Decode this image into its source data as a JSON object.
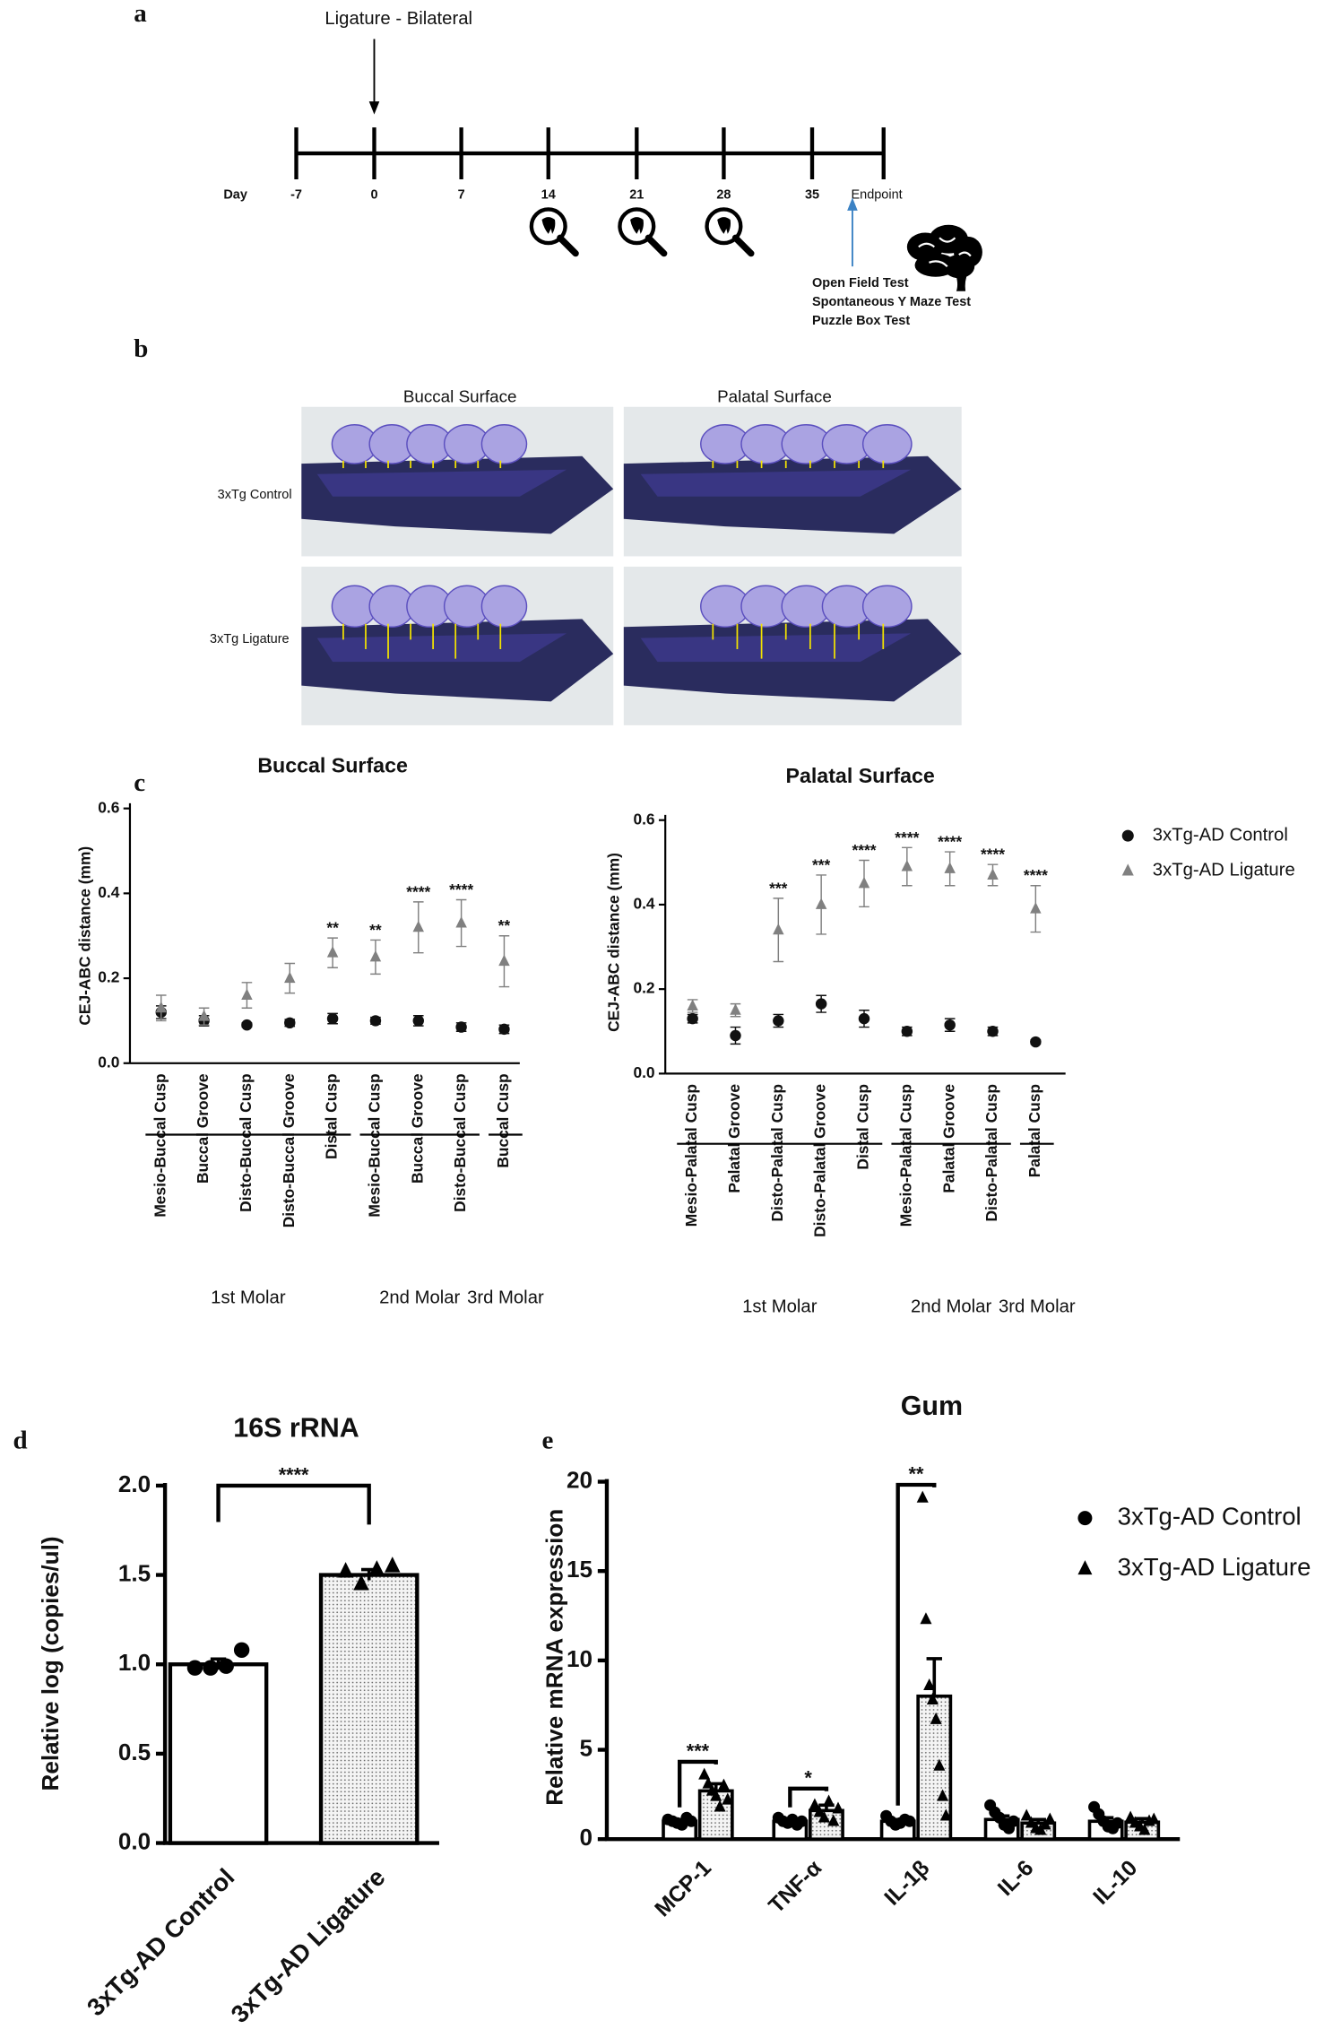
{
  "panel_labels": [
    "a",
    "b",
    "c",
    "d",
    "e"
  ],
  "timeline": {
    "title": "Ligature - Bilateral",
    "day_label": "Day",
    "days": [
      -7,
      0,
      7,
      14,
      21,
      28,
      35
    ],
    "endpoint": "Endpoint",
    "tests": [
      "Open Field Test",
      "Spontaneous Y Maze Test",
      "Puzzle Box Test"
    ]
  },
  "photos": {
    "columns": [
      "Buccal Surface",
      "Palatal Surface"
    ],
    "rows": [
      "3xTg Control",
      "3xTg Ligature"
    ]
  },
  "chart_data": [
    {
      "type": "dot",
      "title": "Buccal Surface",
      "ylabel": "CEJ-ABC distance (mm)",
      "groups": [
        {
          "label": "1st Molar",
          "categories": [
            "Mesio-Buccal Cusp",
            "Buccal Groove",
            "Disto-Buccal Cusp",
            "Disto-Buccal Groove",
            "Distal Cusp"
          ]
        },
        {
          "label": "2nd Molar",
          "categories": [
            "Mesio-Buccal Cusp",
            "Buccal Groove",
            "Disto-Buccal Cusp"
          ]
        },
        {
          "label": "3rd Molar",
          "categories": [
            "Buccal Cusp"
          ]
        }
      ],
      "series": [
        {
          "name": "3xTg-AD Control",
          "color": "#111111",
          "marker": "circle",
          "values": [
            0.12,
            0.1,
            0.09,
            0.095,
            0.105,
            0.1,
            0.1,
            0.085,
            0.08
          ],
          "errors": [
            0.015,
            0.012,
            0.005,
            0.008,
            0.012,
            0.008,
            0.012,
            0.01,
            0.01
          ]
        },
        {
          "name": "3xTg-AD Ligature",
          "color": "#808080",
          "marker": "triangle",
          "values": [
            0.13,
            0.11,
            0.16,
            0.2,
            0.26,
            0.25,
            0.32,
            0.33,
            0.24
          ],
          "errors": [
            0.03,
            0.02,
            0.03,
            0.035,
            0.035,
            0.04,
            0.06,
            0.055,
            0.06
          ]
        }
      ],
      "significance": [
        null,
        null,
        null,
        null,
        "**",
        "**",
        "****",
        "****",
        "**"
      ],
      "ylim": [
        0,
        0.6
      ],
      "yticks": [
        {
          "value": 0,
          "label": "0.0"
        },
        0.2,
        0.4,
        0.6
      ]
    },
    {
      "type": "dot",
      "title": "Palatal Surface",
      "ylabel": "CEJ-ABC distance (mm)",
      "groups": [
        {
          "label": "1st Molar",
          "categories": [
            "Mesio-Palatal Cusp",
            "Palatal Groove",
            "Disto-Palatal Cusp",
            "Disto-Palatal Groove",
            "Distal Cusp"
          ]
        },
        {
          "label": "2nd Molar",
          "categories": [
            "Mesio-Palatal Cusp",
            "Palatal Groove",
            "Disto-Palatal Cusp"
          ]
        },
        {
          "label": "3rd Molar",
          "categories": [
            "Palatal Cusp"
          ]
        }
      ],
      "series": [
        {
          "name": "3xTg-AD Control",
          "color": "#111111",
          "marker": "circle",
          "values": [
            0.13,
            0.09,
            0.125,
            0.165,
            0.13,
            0.1,
            0.115,
            0.1,
            0.075
          ],
          "errors": [
            0.01,
            0.02,
            0.015,
            0.02,
            0.02,
            0.01,
            0.015,
            0.01,
            0.005
          ]
        },
        {
          "name": "3xTg-AD Ligature",
          "color": "#808080",
          "marker": "triangle",
          "values": [
            0.16,
            0.15,
            0.34,
            0.4,
            0.45,
            0.49,
            0.485,
            0.47,
            0.39
          ],
          "errors": [
            0.015,
            0.015,
            0.075,
            0.07,
            0.055,
            0.045,
            0.04,
            0.025,
            0.055
          ]
        }
      ],
      "significance": [
        null,
        null,
        "***",
        "***",
        "****",
        "****",
        "****",
        "****",
        "****"
      ],
      "legend": "right",
      "ylim": [
        0,
        0.6
      ],
      "yticks": [
        {
          "value": 0,
          "label": "0.0"
        },
        0.2,
        0.4,
        0.6
      ]
    },
    {
      "type": "bar",
      "title": "16S rRNA",
      "ylabel": "Relative log (copies/ul)",
      "categories": [
        "3xTg-AD Control",
        "3xTg-AD Ligature"
      ],
      "values": [
        1.0,
        1.5
      ],
      "errors": [
        0.03,
        0.03
      ],
      "points": [
        [
          0.98,
          0.98,
          0.99,
          1.08
        ],
        [
          1.52,
          1.45,
          1.53,
          1.55
        ]
      ],
      "markers": [
        "circle",
        "triangle"
      ],
      "fills": [
        "#ffffff",
        "dots"
      ],
      "significance": "****",
      "ylim": [
        0,
        2
      ],
      "yticks": [
        {
          "value": 0,
          "label": "0.0"
        },
        0.5,
        {
          "value": 1,
          "label": "1.0"
        },
        1.5,
        {
          "value": 2,
          "label": "2.0"
        }
      ]
    },
    {
      "type": "bar",
      "title": "Gum",
      "ylabel": "Relative mRNA expression",
      "categories": [
        "MCP-1",
        "TNF-α",
        "IL-1β",
        "IL-6",
        "IL-10"
      ],
      "series": [
        {
          "name": "3xTg-AD Control",
          "marker": "circle",
          "fill": "#ffffff",
          "values": [
            1.0,
            1.0,
            1.0,
            1.1,
            1.0
          ],
          "errors": [
            0.1,
            0.1,
            0.1,
            0.2,
            0.2
          ],
          "points": [
            [
              1.1,
              1.0,
              0.9,
              0.8,
              1.2,
              1.0
            ],
            [
              1.2,
              1.0,
              0.9,
              1.1,
              0.8,
              1.0
            ],
            [
              1.3,
              1.0,
              0.8,
              0.9,
              1.1,
              1.0
            ],
            [
              1.9,
              1.5,
              1.2,
              0.8,
              0.6,
              1.0
            ],
            [
              1.8,
              1.4,
              1.0,
              0.7,
              0.6,
              0.9
            ]
          ]
        },
        {
          "name": "3xTg-AD Ligature",
          "marker": "triangle",
          "fill": "dots",
          "values": [
            2.7,
            1.6,
            8.0,
            0.9,
            0.95
          ],
          "errors": [
            0.4,
            0.3,
            2.1,
            0.2,
            0.2
          ],
          "points": [
            [
              3.6,
              3.1,
              2.7,
              2.4,
              1.8,
              3.0,
              2.2
            ],
            [
              1.9,
              1.5,
              1.2,
              2.1,
              1.0,
              1.7
            ],
            [
              19.1,
              12.3,
              8.6,
              7.8,
              6.7,
              4.1,
              2.4,
              1.3
            ],
            [
              1.3,
              0.9,
              0.6,
              0.5,
              0.8,
              1.1
            ],
            [
              1.2,
              0.9,
              0.7,
              0.5,
              1.0,
              1.1
            ]
          ]
        }
      ],
      "significance": [
        "***",
        "*",
        "**",
        null,
        null
      ],
      "legend": "right",
      "ylim": [
        0,
        20
      ],
      "yticks": [
        0,
        5,
        10,
        15,
        20
      ]
    }
  ]
}
